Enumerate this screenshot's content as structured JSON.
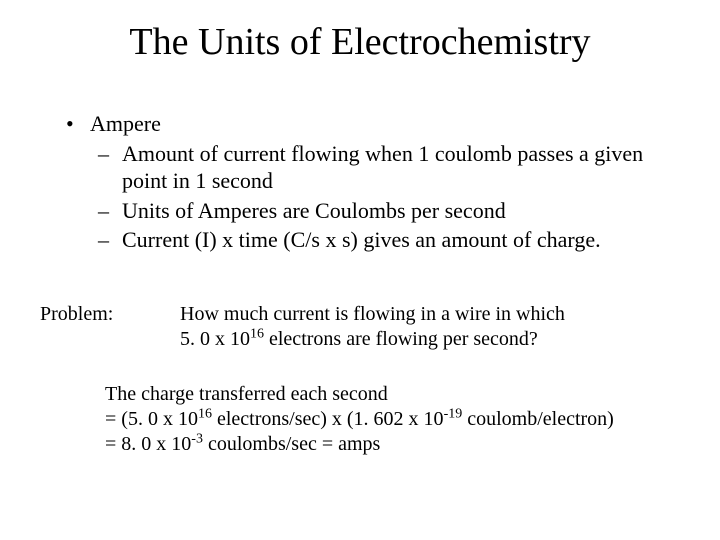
{
  "title": "The Units of Electrochemistry",
  "body": {
    "l1": "Ampere",
    "l2a": "Amount of current flowing  when 1 coulomb passes a given point in 1 second",
    "l2b": "Units of Amperes are Coulombs per second",
    "l2c": "Current (I) x time (C/s x s) gives an amount of charge."
  },
  "problem": {
    "label": "Problem:",
    "line1": "How much current is flowing in a wire in which",
    "line2a": "5. 0 x 10",
    "line2exp": "16",
    "line2b": " electrons are flowing per second?"
  },
  "solution": {
    "line1": "The charge transferred each second",
    "l2a": "= (5. 0 x 10",
    "l2exp1": "16",
    "l2b": " electrons/sec) x (1. 602 x 10",
    "l2exp2": "-19",
    "l2c": " coulomb/electron)",
    "l3a": "= 8. 0 x 10",
    "l3exp": "-3",
    "l3b": " coulombs/sec = amps"
  },
  "style": {
    "background": "#ffffff",
    "text_color": "#000000",
    "font_family": "Times New Roman",
    "title_fontsize": 38,
    "body_fontsize": 22,
    "problem_fontsize": 20
  }
}
